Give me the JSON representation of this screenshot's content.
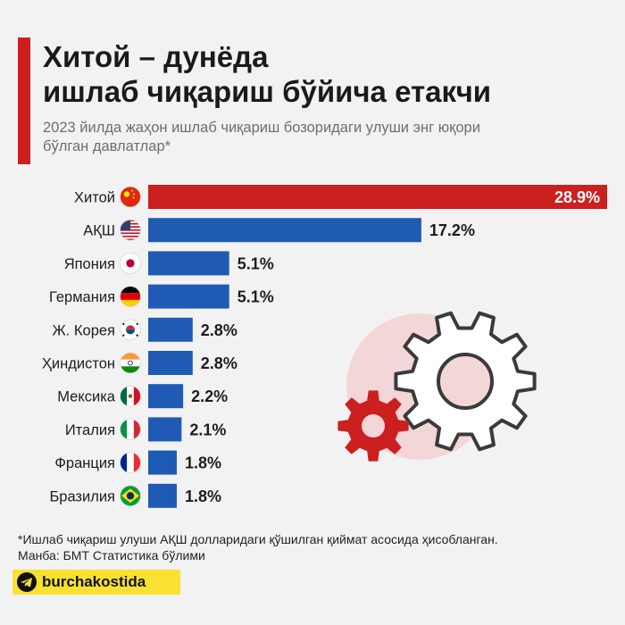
{
  "header": {
    "title_line1": "Хитой – дунёда",
    "title_line2": "ишлаб чиқариш бўйича етакчи",
    "subtitle_line1": "2023 йилда жаҳон ишлаб чиқариш бозоридаги улуши энг юқори",
    "subtitle_line2": "бўлган давлатлар*"
  },
  "chart_data": {
    "type": "bar",
    "orientation": "horizontal",
    "categories": [
      "Хитой",
      "АҚШ",
      "Япония",
      "Германия",
      "Ж. Корея",
      "Ҳиндистон",
      "Мексика",
      "Италия",
      "Франция",
      "Бразилия"
    ],
    "values": [
      28.9,
      17.2,
      5.1,
      5.1,
      2.8,
      2.8,
      2.2,
      2.1,
      1.8,
      1.8
    ],
    "value_labels": [
      "28.9%",
      "17.2%",
      "5.1%",
      "5.1%",
      "2.8%",
      "2.8%",
      "2.2%",
      "2.1%",
      "1.8%",
      "1.8%"
    ],
    "flags": [
      "china-flag-icon",
      "usa-flag-icon",
      "japan-flag-icon",
      "germany-flag-icon",
      "south-korea-flag-icon",
      "india-flag-icon",
      "mexico-flag-icon",
      "italy-flag-icon",
      "france-flag-icon",
      "brazil-flag-icon"
    ],
    "highlight_index": 0,
    "colors": {
      "highlight": "#cc1f1f",
      "bar": "#1f5bb4"
    },
    "xlim": [
      0,
      28.9
    ],
    "grid": false,
    "legend": "none",
    "decoration": "gear-icons"
  },
  "footnote": {
    "line1": "*Ишлаб чиқариш улуши АҚШ долларидаги қўшилган қиймат асосида ҳисобланган.",
    "line2": "Манба: БМТ Статистика бўлими"
  },
  "brand": {
    "name": "burchakostida",
    "icon": "telegram-icon",
    "color": "#f8e133"
  }
}
